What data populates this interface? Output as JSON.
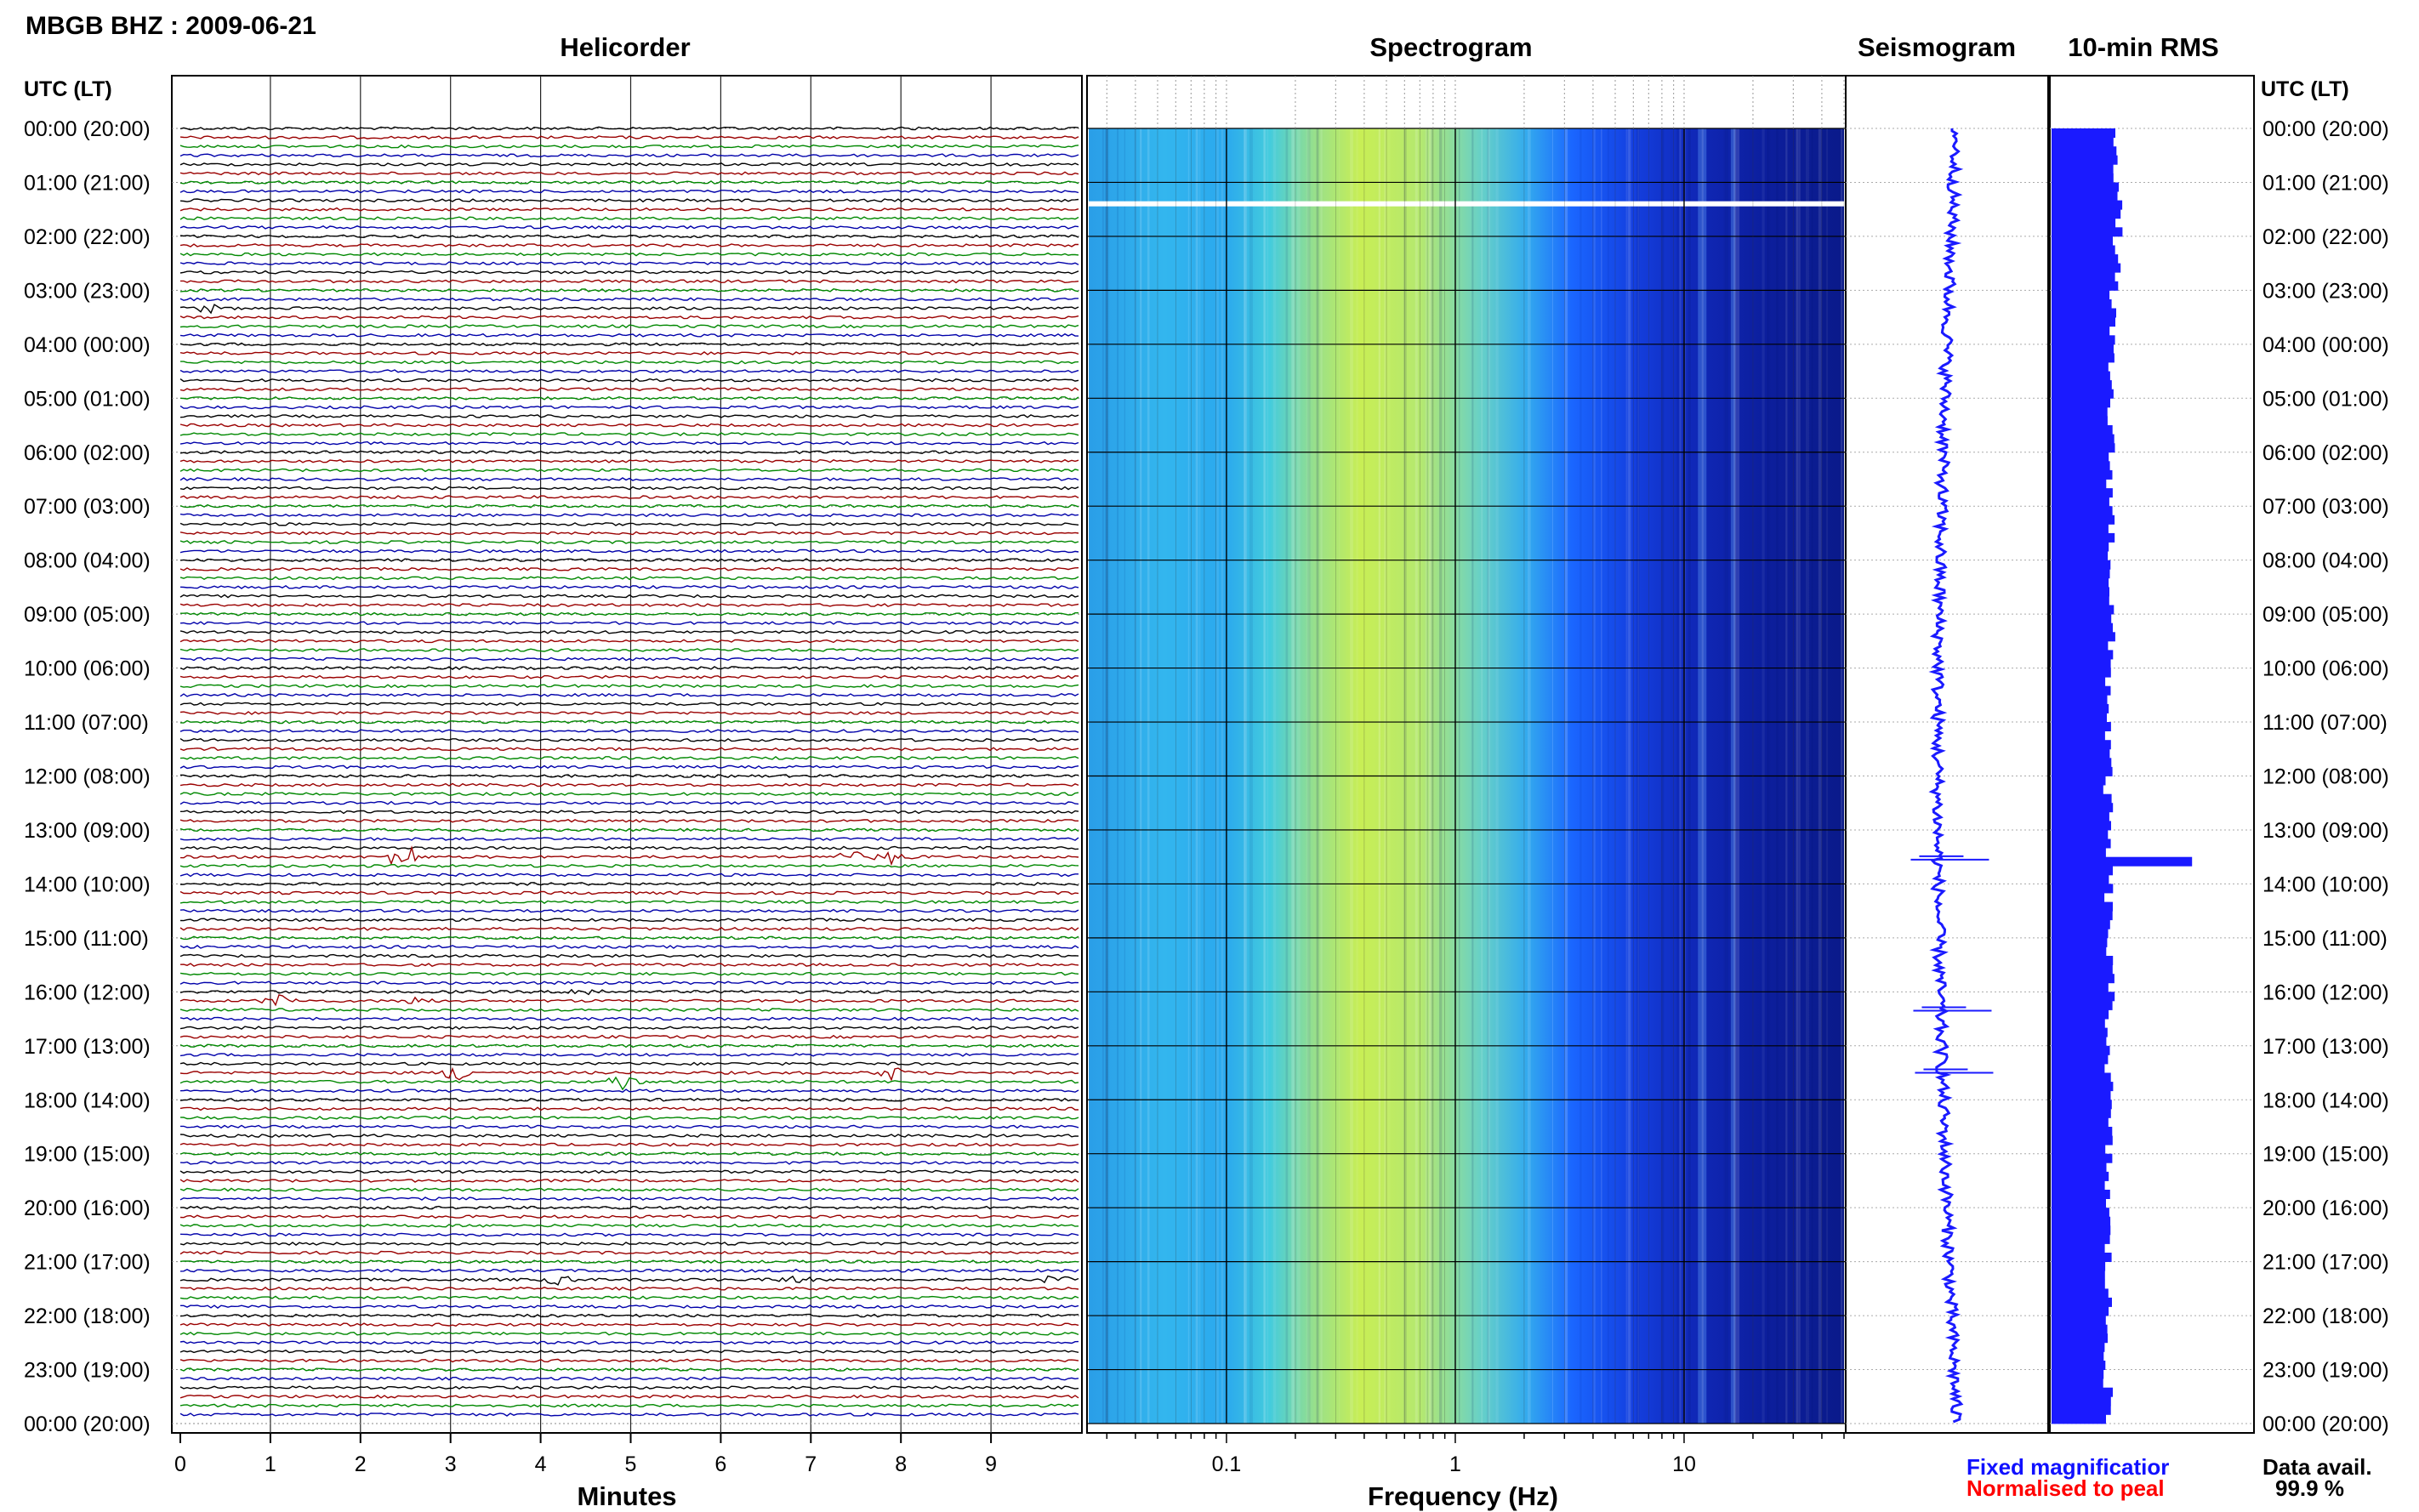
{
  "station_title": "MBGB BHZ : 2009-06-21",
  "panels": {
    "helicorder": "Helicorder",
    "spectrogram": "Spectrogram",
    "seismogram": "Seismogram",
    "rms": "10-min RMS"
  },
  "time_axis_label": "UTC (LT)",
  "time_labels": [
    "00:00 (20:00)",
    "01:00 (21:00)",
    "02:00 (22:00)",
    "03:00 (23:00)",
    "04:00 (00:00)",
    "05:00 (01:00)",
    "06:00 (02:00)",
    "07:00 (03:00)",
    "08:00 (04:00)",
    "09:00 (05:00)",
    "10:00 (06:00)",
    "11:00 (07:00)",
    "12:00 (08:00)",
    "13:00 (09:00)",
    "14:00 (10:00)",
    "15:00 (11:00)",
    "16:00 (12:00)",
    "17:00 (13:00)",
    "18:00 (14:00)",
    "19:00 (15:00)",
    "20:00 (16:00)",
    "21:00 (17:00)",
    "22:00 (18:00)",
    "23:00 (19:00)",
    "00:00 (20:00)"
  ],
  "legend": {
    "fixed": "Fixed magnificatior",
    "normalised": "Normalised to peal",
    "fixed_color": "#1010ff",
    "normalised_color": "#ff0000"
  },
  "availability": {
    "label": "Data avail.",
    "value": "99.9 %"
  },
  "colors": {
    "trace_cycle": [
      "#000000",
      "#9a0000",
      "#008800",
      "#0000aa"
    ],
    "bar": "#1a1aff",
    "spec_dark": "#0a1a8a",
    "spec_mid": "#1a66ff",
    "spec_light": "#33bbee",
    "spec_yellow": "#ccee44"
  },
  "chart_data": [
    {
      "type": "line",
      "panel": "helicorder",
      "xlabel": "Minutes",
      "xlim": [
        0,
        10
      ],
      "x_ticks": [
        "0",
        "1",
        "2",
        "3",
        "4",
        "5",
        "6",
        "7",
        "8",
        "9"
      ],
      "ylim_hours": [
        0,
        24
      ],
      "rows_per_hour": 6,
      "events": [
        {
          "hour": 13.5,
          "minute": 2.5,
          "amp": 2.2
        },
        {
          "hour": 13.5,
          "minute": 7.4,
          "amp": 1.0
        },
        {
          "hour": 13.5,
          "minute": 7.9,
          "amp": 1.0
        },
        {
          "hour": 16.17,
          "minute": 1.1,
          "amp": 0.8
        },
        {
          "hour": 16.17,
          "minute": 2.6,
          "amp": 0.6
        },
        {
          "hour": 16.0,
          "minute": 4.5,
          "amp": 0.7
        },
        {
          "hour": 17.5,
          "minute": 3.1,
          "amp": 1.2
        },
        {
          "hour": 17.5,
          "minute": 7.9,
          "amp": 0.9
        },
        {
          "hour": 17.67,
          "minute": 4.9,
          "amp": 1.2
        },
        {
          "hour": 21.33,
          "minute": 4.2,
          "amp": 0.6
        },
        {
          "hour": 21.33,
          "minute": 6.8,
          "amp": 0.6
        },
        {
          "hour": 21.33,
          "minute": 9.7,
          "amp": 0.5
        },
        {
          "hour": 3.33,
          "minute": 0.3,
          "amp": 0.6
        }
      ]
    },
    {
      "type": "heatmap",
      "panel": "spectrogram",
      "xlabel": "Frequency (Hz)",
      "x_scale": "log",
      "xlim": [
        0.025,
        50
      ],
      "x_ticks": [
        "0.1",
        "1",
        "10"
      ],
      "ylim_hours": [
        0,
        24
      ],
      "data_gap_hour": 1.35,
      "peak_band_hz": [
        0.2,
        0.8
      ]
    },
    {
      "type": "line",
      "panel": "seismogram",
      "ylim_hours": [
        0,
        24
      ],
      "bursts_hours": [
        13.55,
        16.35,
        17.5
      ]
    },
    {
      "type": "bar",
      "panel": "10-min RMS",
      "orientation": "horizontal",
      "interval_minutes": 10,
      "ylim_hours": [
        0,
        24
      ],
      "xlim": [
        0,
        1
      ],
      "spike": {
        "hour": 13.55,
        "value": 0.7
      },
      "baseline_profile": [
        [
          0,
          0.33
        ],
        [
          2,
          0.33
        ],
        [
          4,
          0.29
        ],
        [
          8,
          0.3
        ],
        [
          12,
          0.28
        ],
        [
          16,
          0.29
        ],
        [
          20,
          0.28
        ],
        [
          24,
          0.28
        ]
      ]
    }
  ]
}
